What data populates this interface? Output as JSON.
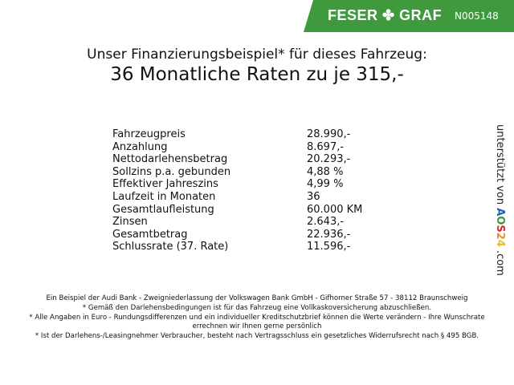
{
  "header": {
    "brand": "FESER",
    "brand2": "GRAF",
    "vehicle_code": "N005148",
    "color": "#3e9a3c"
  },
  "title": {
    "line1": "Unser Finanzierungsbeispiel* für dieses Fahrzeug:",
    "line2": "36 Monatliche Raten zu je 315,-"
  },
  "table": [
    {
      "label": "Fahrzeugpreis",
      "value": "28.990,-"
    },
    {
      "label": "Anzahlung",
      "value": "8.697,-"
    },
    {
      "label": "Nettodarlehensbetrag",
      "value": "20.293,-"
    },
    {
      "label": "Sollzins p.a. gebunden",
      "value": "4,88 %"
    },
    {
      "label": "Effektiver Jahreszins",
      "value": "4,99 %"
    },
    {
      "label": "Laufzeit in Monaten",
      "value": "36"
    },
    {
      "label": "Gesamtlaufleistung",
      "value": "60.000 KM"
    },
    {
      "label": "Zinsen",
      "value": "2.643,-"
    },
    {
      "label": "Gesamtbetrag",
      "value": "22.936,-"
    },
    {
      "label": "Schlussrate (37. Rate)",
      "value": "11.596,-"
    }
  ],
  "side": {
    "text": "unterstützt von",
    "logo": [
      "A",
      "O",
      "S",
      "2",
      "4"
    ],
    "suffix": ".com"
  },
  "footer": [
    "Ein Beispiel der Audi Bank - Zweigniederlassung der Volkswagen Bank GmbH - Gifhorner Straße 57 - 38112 Braunschweig",
    "* Gemäß den Darlehensbedingungen ist für das Fahrzeug eine Vollkaskoversicherung abzuschließen.",
    "* Alle Angaben in Euro - Rundungsdifferenzen und ein individueller Kreditschutzbrief können die Werte verändern - Ihre Wunschrate errechnen wir Ihnen gerne persönlich",
    "* Ist der Darlehens-/Leasingnehmer Verbraucher, besteht nach Vertragsschluss ein gesetzliches Widerrufsrecht nach § 495 BGB."
  ]
}
